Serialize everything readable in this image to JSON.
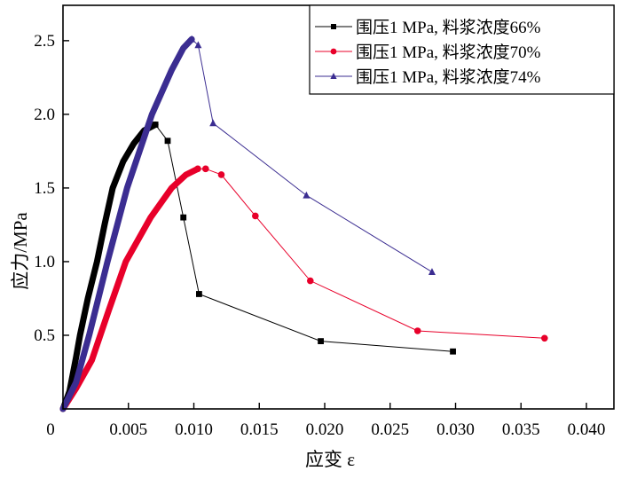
{
  "chart_data": {
    "type": "line",
    "xlabel": "应变 ε",
    "ylabel": "应力/MPa",
    "xlim": [
      0,
      0.0421
    ],
    "ylim": [
      0,
      2.74
    ],
    "xticks": [
      0,
      0.005,
      0.01,
      0.015,
      0.02,
      0.025,
      0.03,
      0.035,
      0.04
    ],
    "xtick_labels": [
      "0",
      "0.005",
      "0.010",
      "0.015",
      "0.020",
      "0.025",
      "0.030",
      "0.035",
      "0.040"
    ],
    "yticks": [
      0.5,
      1.0,
      1.5,
      2.0,
      2.5
    ],
    "ytick_labels": [
      "0.5",
      "1.0",
      "1.5",
      "2.0",
      "2.5"
    ],
    "grid": false,
    "legend_position": "top-right",
    "series": [
      {
        "name": "围压1 MPa, 料浆浓度66%",
        "color": "#000000",
        "marker": "square",
        "pre_peak": [
          [
            0,
            0
          ],
          [
            0.0005,
            0.12
          ],
          [
            0.001,
            0.35
          ],
          [
            0.0013,
            0.5
          ],
          [
            0.0019,
            0.75
          ],
          [
            0.0026,
            1.0
          ],
          [
            0.0032,
            1.26
          ],
          [
            0.0038,
            1.5
          ],
          [
            0.0046,
            1.68
          ],
          [
            0.0054,
            1.8
          ],
          [
            0.0062,
            1.89
          ],
          [
            0.00706,
            1.93
          ]
        ],
        "post_peak": [
          [
            0.00706,
            1.93
          ],
          [
            0.008,
            1.82
          ],
          [
            0.0092,
            1.3
          ],
          [
            0.0104,
            0.78
          ],
          [
            0.0197,
            0.46
          ],
          [
            0.0298,
            0.39
          ]
        ]
      },
      {
        "name": "围压1 MPa, 料浆浓度70%",
        "color": "#e8002a",
        "marker": "circle",
        "pre_peak": [
          [
            0,
            0
          ],
          [
            0.001,
            0.14
          ],
          [
            0.0022,
            0.33
          ],
          [
            0.0035,
            0.67
          ],
          [
            0.0048,
            1.0
          ],
          [
            0.0067,
            1.3
          ],
          [
            0.0083,
            1.5
          ],
          [
            0.0094,
            1.59
          ],
          [
            0.0103,
            1.63
          ]
        ],
        "post_peak": [
          [
            0.0103,
            1.63
          ],
          [
            0.0109,
            1.63
          ],
          [
            0.0121,
            1.59
          ],
          [
            0.0147,
            1.31
          ],
          [
            0.0189,
            0.87
          ],
          [
            0.0271,
            0.53
          ],
          [
            0.0368,
            0.48
          ]
        ]
      },
      {
        "name": "围压1 MPa, 料浆浓度74%",
        "color": "#3b2d91",
        "marker": "triangle",
        "pre_peak": [
          [
            0,
            0
          ],
          [
            0.001,
            0.18
          ],
          [
            0.002,
            0.5
          ],
          [
            0.0034,
            1.0
          ],
          [
            0.0049,
            1.5
          ],
          [
            0.0068,
            2.0
          ],
          [
            0.0083,
            2.3
          ],
          [
            0.0092,
            2.45
          ],
          [
            0.00984,
            2.51
          ]
        ],
        "post_peak": [
          [
            0.00984,
            2.51
          ],
          [
            0.01033,
            2.47
          ],
          [
            0.01147,
            1.94
          ],
          [
            0.0186,
            1.45
          ],
          [
            0.0282,
            0.93
          ]
        ]
      }
    ]
  }
}
